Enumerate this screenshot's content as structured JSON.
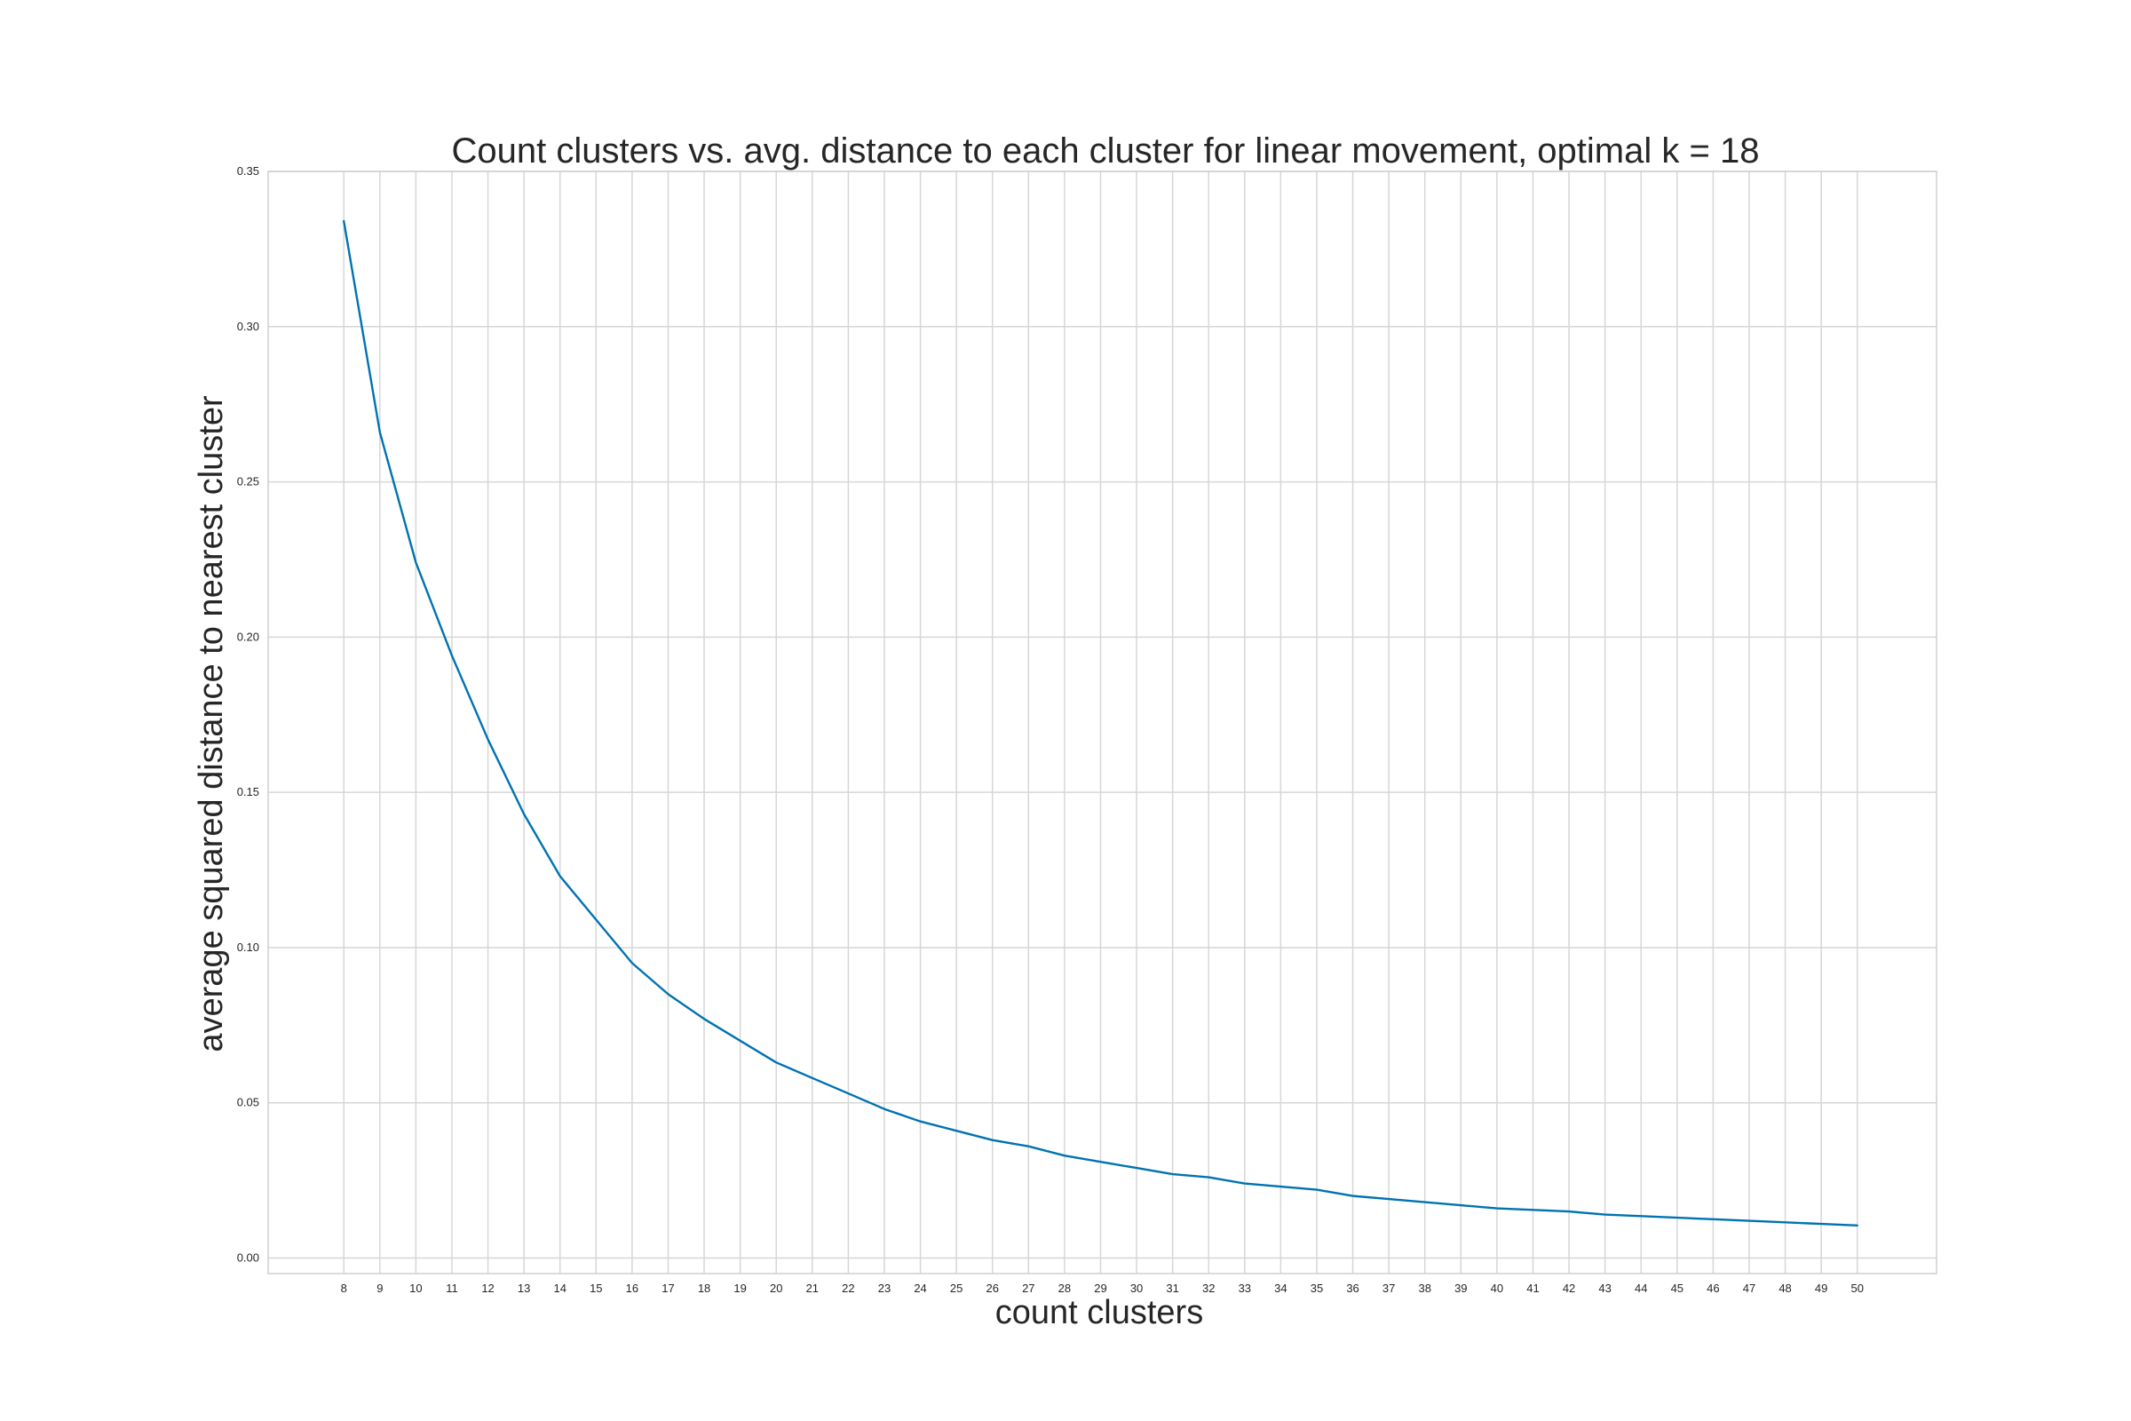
{
  "chart_data": {
    "type": "line",
    "title": "Count clusters vs. avg. distance to each cluster for linear movement, optimal k = 18",
    "xlabel": "count clusters",
    "ylabel": "average squared distance to nearest cluster",
    "x": [
      8,
      9,
      10,
      11,
      12,
      13,
      14,
      15,
      16,
      17,
      18,
      19,
      20,
      21,
      22,
      23,
      24,
      25,
      26,
      27,
      28,
      29,
      30,
      31,
      32,
      33,
      34,
      35,
      36,
      37,
      38,
      39,
      40,
      41,
      42,
      43,
      44,
      45,
      46,
      47,
      48,
      49,
      50
    ],
    "xticks": [
      "8",
      "9",
      "10",
      "11",
      "12",
      "13",
      "14",
      "15",
      "16",
      "17",
      "18",
      "19",
      "20",
      "21",
      "22",
      "23",
      "24",
      "25",
      "26",
      "27",
      "28",
      "29",
      "30",
      "31",
      "32",
      "33",
      "34",
      "35",
      "36",
      "37",
      "38",
      "39",
      "40",
      "41",
      "42",
      "43",
      "44",
      "45",
      "46",
      "47",
      "48",
      "49",
      "50"
    ],
    "yticks": [
      "0.00",
      "0.05",
      "0.10",
      "0.15",
      "0.20",
      "0.25",
      "0.30",
      "0.35"
    ],
    "ylim": [
      -0.005,
      0.35
    ],
    "xlim": [
      5.9,
      52.2
    ],
    "grid": true,
    "series": [
      {
        "color": "#0072b2",
        "values": [
          0.334,
          0.266,
          0.224,
          0.194,
          0.167,
          0.143,
          0.123,
          0.109,
          0.095,
          0.085,
          0.077,
          0.07,
          0.063,
          0.058,
          0.053,
          0.048,
          0.044,
          0.041,
          0.038,
          0.036,
          0.033,
          0.031,
          0.029,
          0.027,
          0.026,
          0.024,
          0.023,
          0.022,
          0.02,
          0.019,
          0.018,
          0.017,
          0.016,
          0.0155,
          0.015,
          0.014,
          0.0135,
          0.013,
          0.0125,
          0.012,
          0.0115,
          0.011,
          0.0105
        ]
      }
    ]
  }
}
